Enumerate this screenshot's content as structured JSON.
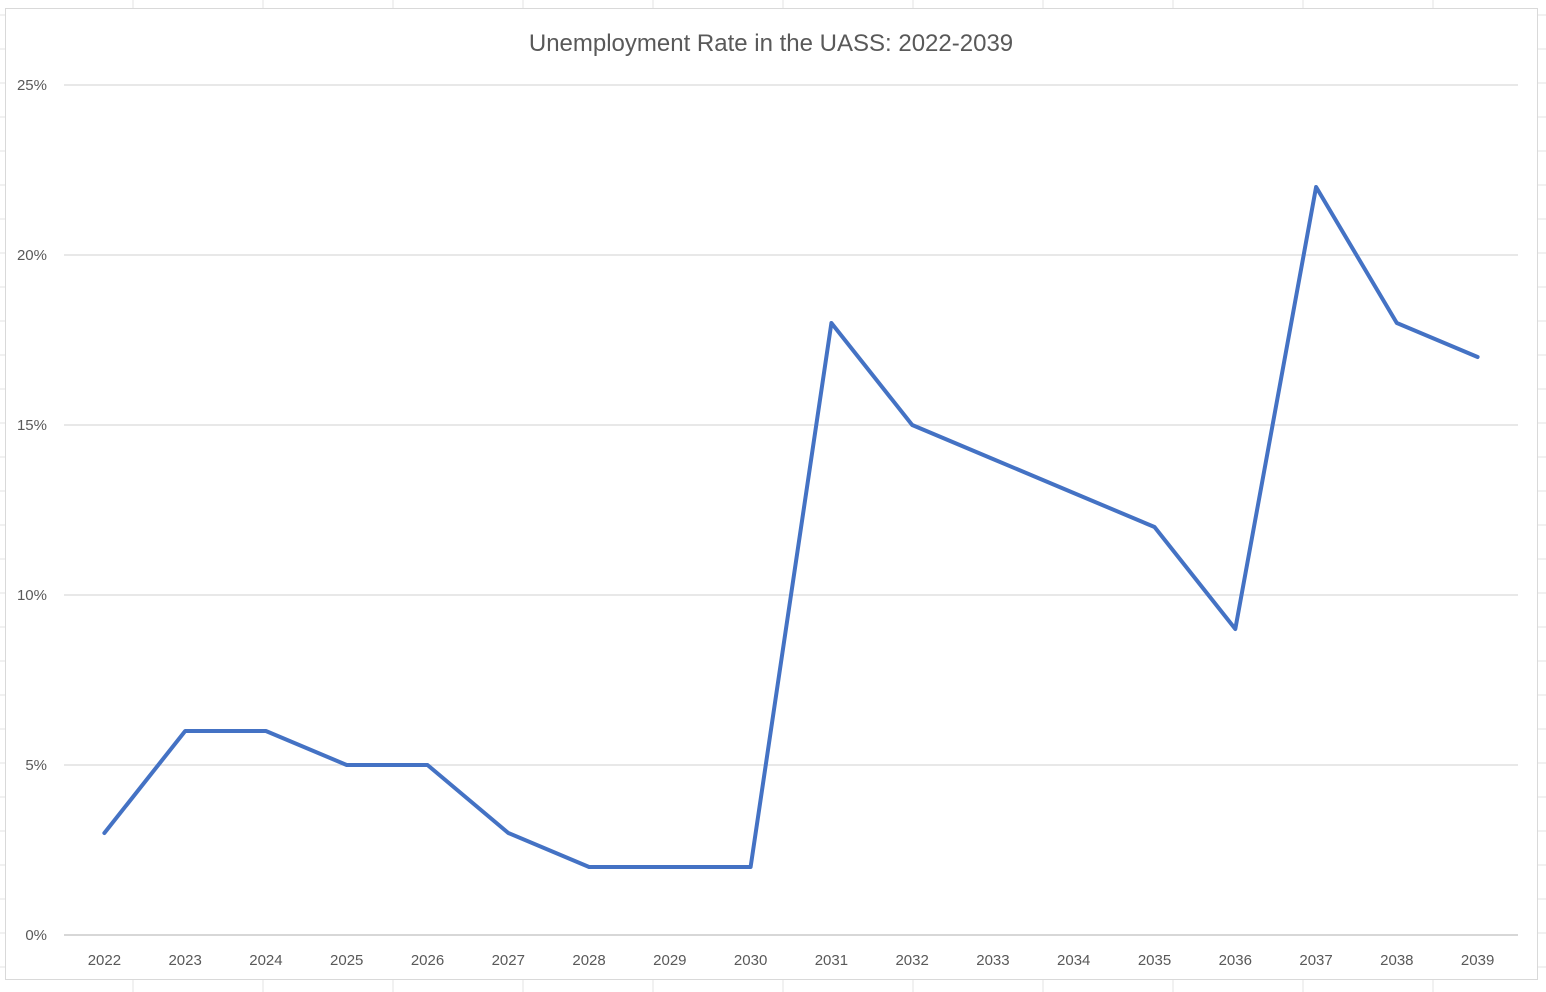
{
  "chart_data": {
    "type": "line",
    "title": "Unemployment Rate in the UASS: 2022-2039",
    "xlabel": "",
    "ylabel": "",
    "categories": [
      "2022",
      "2023",
      "2024",
      "2025",
      "2026",
      "2027",
      "2028",
      "2029",
      "2030",
      "2031",
      "2032",
      "2033",
      "2034",
      "2035",
      "2036",
      "2037",
      "2038",
      "2039"
    ],
    "series": [
      {
        "values": [
          3,
          6,
          6,
          5,
          5,
          3,
          2,
          2,
          2,
          18,
          15,
          14,
          13,
          12,
          9,
          22,
          18,
          17
        ]
      }
    ],
    "ylim": [
      0,
      25
    ],
    "yticks": [
      "0%",
      "5%",
      "10%",
      "15%",
      "20%",
      "25%"
    ],
    "grid": true,
    "legend": "none",
    "colors": {
      "series": "#4472c4",
      "grid": "#d9d9d9",
      "text": "#595959"
    }
  }
}
